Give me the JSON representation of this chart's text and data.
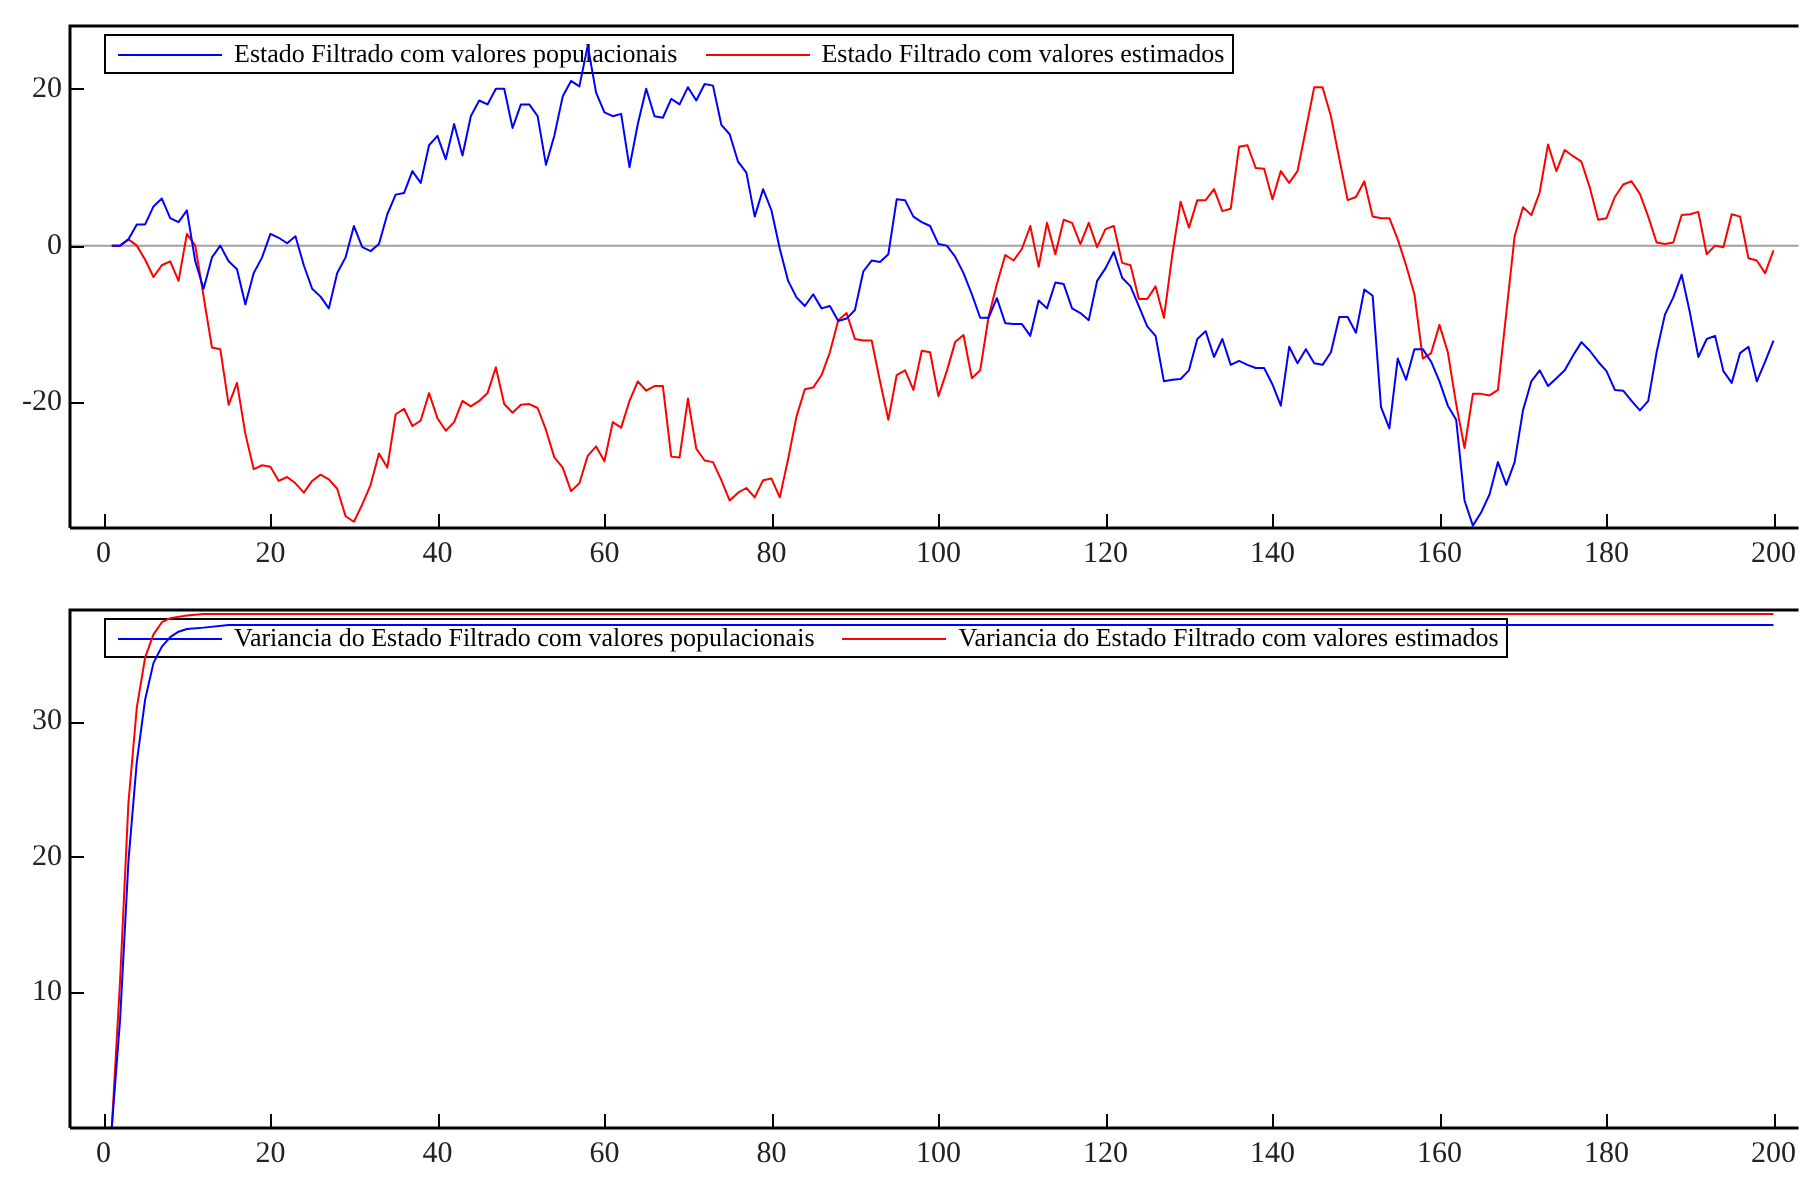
{
  "chart_data": [
    {
      "type": "line",
      "x": [
        1,
        2,
        3,
        4,
        5,
        6,
        7,
        8,
        9,
        10,
        11,
        12,
        13,
        14,
        15,
        16,
        17,
        18,
        19,
        20,
        21,
        22,
        23,
        24,
        25,
        26,
        27,
        28,
        29,
        30,
        31,
        32,
        33,
        34,
        35,
        36,
        37,
        38,
        39,
        40,
        41,
        42,
        43,
        44,
        45,
        46,
        47,
        48,
        49,
        50,
        51,
        52,
        53,
        54,
        55,
        56,
        57,
        58,
        59,
        60,
        61,
        62,
        63,
        64,
        65,
        66,
        67,
        68,
        69,
        70,
        71,
        72,
        73,
        74,
        75,
        76,
        77,
        78,
        79,
        80,
        81,
        82,
        83,
        84,
        85,
        86,
        87,
        88,
        89,
        90,
        91,
        92,
        93,
        94,
        95,
        96,
        97,
        98,
        99,
        100,
        101,
        102,
        103,
        104,
        105,
        106,
        107,
        108,
        109,
        110,
        111,
        112,
        113,
        114,
        115,
        116,
        117,
        118,
        119,
        120,
        121,
        122,
        123,
        124,
        125,
        126,
        127,
        128,
        129,
        130,
        131,
        132,
        133,
        134,
        135,
        136,
        137,
        138,
        139,
        140,
        141,
        142,
        143,
        144,
        145,
        146,
        147,
        148,
        149,
        150,
        151,
        152,
        153,
        154,
        155,
        156,
        157,
        158,
        159,
        160,
        161,
        162,
        163,
        164,
        165,
        166,
        167,
        168,
        169,
        170,
        171,
        172,
        173,
        174,
        175,
        176,
        177,
        178,
        179,
        180,
        181,
        182,
        183,
        184,
        185,
        186,
        187,
        188,
        189,
        190,
        191,
        192,
        193,
        194,
        195,
        196,
        197,
        198,
        199,
        200
      ],
      "xlim": [
        -4,
        203
      ],
      "xticks": [
        0,
        20,
        40,
        60,
        80,
        100,
        120,
        140,
        160,
        180,
        200
      ],
      "ylim": [
        -36,
        28
      ],
      "yticks": [
        -20,
        0,
        20
      ],
      "legend": "top left",
      "ref_lines": [
        {
          "axis": "y",
          "value": 0,
          "color": "#a0a0a0"
        }
      ],
      "series": [
        {
          "name": "Estado Filtrado com valores populacionais",
          "color": "#0000ff",
          "values": [
            0,
            0,
            0.8,
            2.7,
            2.7,
            5,
            6,
            3.5,
            3,
            4.5,
            -2,
            -5.5,
            -1.5,
            0,
            -2,
            -3,
            -7.5,
            -3.5,
            -1.5,
            1.5,
            1,
            0.3,
            1.2,
            -2.5,
            -5.5,
            -6.5,
            -8,
            -3.5,
            -1.5,
            2.5,
            -0.2,
            -0.7,
            0.2,
            4,
            6.5,
            6.7,
            9.5,
            8,
            12.8,
            14,
            11,
            15.5,
            11.5,
            16.5,
            18.5,
            18,
            20,
            20,
            15,
            18,
            18,
            16.5,
            10.3,
            14,
            19,
            21,
            20.3,
            25.5,
            19.5,
            17,
            16.5,
            16.8,
            10,
            15.5,
            20,
            16.5,
            16.3,
            18.7,
            18,
            20.2,
            18.5,
            20.6,
            20.4,
            15.4,
            14.2,
            10.7,
            9.3,
            3.7,
            7.2,
            4.5,
            -0.4,
            -4.5,
            -6.6,
            -7.7,
            -6.2,
            -8,
            -7.7,
            -9.6,
            -9.3,
            -8.2,
            -3.3,
            -1.9,
            -2.1,
            -1.1,
            5.9,
            5.8,
            3.7,
            3,
            2.5,
            0.2,
            0,
            -1.4,
            -3.5,
            -6.2,
            -9.2,
            -9.2,
            -6.7,
            -9.9,
            -10,
            -10,
            -11.5,
            -7,
            -8,
            -4.7,
            -4.9,
            -8,
            -8.6,
            -9.5,
            -4.5,
            -2.9,
            -0.8,
            -4.1,
            -5.2,
            -7.7,
            -10.3,
            -11.5,
            -17.3,
            -17.1,
            -17,
            -15.9,
            -11.9,
            -10.9,
            -14.2,
            -11.9,
            -15.2,
            -14.7,
            -15.2,
            -15.6,
            -15.6,
            -17.7,
            -20.4,
            -12.9,
            -15,
            -13.2,
            -15,
            -15.2,
            -13.6,
            -9.1,
            -9.1,
            -11.1,
            -5.6,
            -6.4,
            -20.6,
            -23.3,
            -14.4,
            -17.1,
            -13.2,
            -13.2,
            -14.8,
            -17.3,
            -20.4,
            -22.2,
            -32.5,
            -35.7,
            -34,
            -31.7,
            -27.6,
            -30.5,
            -27.6,
            -21,
            -17.3,
            -15.9,
            -17.9,
            -16.9,
            -15.9,
            -14,
            -12.3,
            -13.4,
            -14.8,
            -16,
            -18.4,
            -18.5,
            -19.8,
            -21,
            -19.8,
            -13.6,
            -8.8,
            -6.6,
            -3.7,
            -8.6,
            -14.2,
            -11.9,
            -11.5,
            -16,
            -17.5,
            -13.7,
            -12.9,
            -17.3,
            -14.8,
            -12.1
          ]
        },
        {
          "name": "Estado Filtrado com valores estimados",
          "color": "#ff0000",
          "values": [
            0,
            0,
            0.8,
            0,
            -1.8,
            -4,
            -2.5,
            -2,
            -4.5,
            1.5,
            0,
            -6.5,
            -13,
            -13.2,
            -20.3,
            -17.5,
            -24,
            -28.5,
            -28,
            -28.2,
            -30,
            -29.5,
            -30.3,
            -31.5,
            -30,
            -29.2,
            -29.8,
            -31,
            -34.5,
            -35.2,
            -33,
            -30.5,
            -26.5,
            -28.3,
            -21.5,
            -20.8,
            -23,
            -22.3,
            -18.8,
            -22,
            -23.6,
            -22.5,
            -19.8,
            -20.5,
            -19.8,
            -18.8,
            -15.5,
            -20.2,
            -21.3,
            -20.3,
            -20.2,
            -20.7,
            -23.5,
            -27,
            -28.3,
            -31.3,
            -30.3,
            -26.8,
            -25.6,
            -27.5,
            -22.5,
            -23.2,
            -19.8,
            -17.3,
            -18.5,
            -17.9,
            -17.9,
            -26.9,
            -27,
            -19.5,
            -25.9,
            -27.4,
            -27.6,
            -29.9,
            -32.5,
            -31.5,
            -30.9,
            -32.1,
            -29.9,
            -29.7,
            -32.1,
            -27.2,
            -21.8,
            -18.3,
            -18.1,
            -16.5,
            -13.6,
            -9.5,
            -8.6,
            -11.9,
            -12.1,
            -12.1,
            -17.3,
            -22.2,
            -16.5,
            -15.9,
            -18.4,
            -13.4,
            -13.6,
            -19.2,
            -16,
            -12.3,
            -11.4,
            -16.9,
            -15.9,
            -9.1,
            -4.9,
            -1.2,
            -1.9,
            -0.4,
            2.5,
            -2.7,
            2.9,
            -1.1,
            3.3,
            2.9,
            0.2,
            2.9,
            -0.2,
            2.1,
            2.5,
            -2.2,
            -2.5,
            -6.8,
            -6.8,
            -5.2,
            -9.2,
            -1.2,
            5.6,
            2.3,
            5.8,
            5.8,
            7.2,
            4.4,
            4.7,
            12.6,
            12.8,
            9.9,
            9.8,
            5.9,
            9.5,
            8,
            9.5,
            14.8,
            20.2,
            20.2,
            16.5,
            11.1,
            5.8,
            6.2,
            8.2,
            3.7,
            3.5,
            3.5,
            0.8,
            -2.5,
            -6.2,
            -14.4,
            -13.7,
            -10.1,
            -13.6,
            -20.2,
            -25.8,
            -18.9,
            -18.9,
            -19.1,
            -18.4,
            -8.6,
            1.2,
            4.9,
            3.9,
            6.8,
            12.9,
            9.5,
            12.2,
            11.4,
            10.7,
            7.4,
            3.3,
            3.5,
            6.2,
            7.8,
            8.2,
            6.6,
            3.7,
            0.4,
            0.2,
            0.4,
            3.9,
            4,
            4.3,
            -1.1,
            0,
            -0.2,
            4,
            3.7,
            -1.6,
            -1.9,
            -3.5,
            -0.6
          ]
        }
      ]
    },
    {
      "type": "line",
      "xlim": [
        -4,
        203
      ],
      "xticks": [
        0,
        20,
        40,
        60,
        80,
        100,
        120,
        140,
        160,
        180,
        200
      ],
      "ylim": [
        0,
        38.2
      ],
      "yticks": [
        10,
        20,
        30
      ],
      "legend": "top left",
      "series": [
        {
          "name": "Variancia do Estado Filtrado com valores populacionais",
          "color": "#0000ff",
          "x": [
            1,
            2,
            3,
            4,
            5,
            6,
            7,
            8,
            9,
            10,
            12,
            15,
            200
          ],
          "values": [
            0,
            8,
            19.7,
            27,
            31.6,
            34.3,
            35.5,
            36.2,
            36.6,
            36.8,
            36.9,
            37.1,
            37.1
          ]
        },
        {
          "name": "Variancia do Estado Filtrado com valores estimados",
          "color": "#ff0000",
          "x": [
            1,
            2,
            3,
            4,
            5,
            6,
            7,
            8,
            10,
            12,
            15,
            200
          ],
          "values": [
            0,
            10.9,
            24,
            31,
            34.7,
            36.4,
            37.3,
            37.6,
            37.8,
            37.9,
            37.9,
            37.9
          ]
        }
      ]
    }
  ]
}
